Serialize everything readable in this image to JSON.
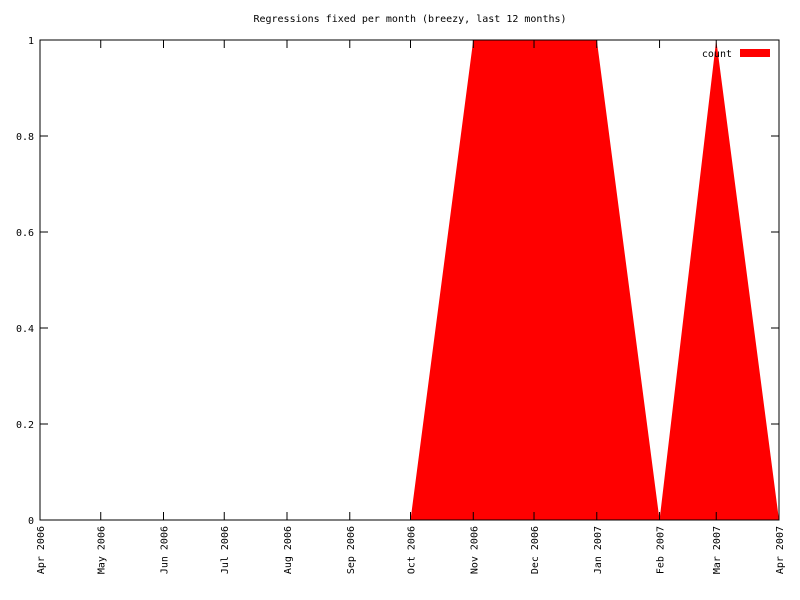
{
  "chart_data": {
    "type": "area",
    "title": "Regressions fixed per month (breezy, last 12 months)",
    "x": [
      "Apr 2006",
      "May 2006",
      "Jun 2006",
      "Jul 2006",
      "Aug 2006",
      "Sep 2006",
      "Oct 2006",
      "Nov 2006",
      "Dec 2006",
      "Jan 2007",
      "Feb 2007",
      "Mar 2007",
      "Apr 2007"
    ],
    "series": [
      {
        "name": "count",
        "color": "#ff0000",
        "values": [
          0,
          0,
          0,
          0,
          0,
          0,
          0,
          1,
          1,
          1,
          0,
          1,
          0
        ]
      }
    ],
    "xlim": [
      "Apr 2006",
      "Apr 2007"
    ],
    "xticks": [
      "Apr 2006",
      "May 2006",
      "Jun 2006",
      "Jul 2006",
      "Aug 2006",
      "Sep 2006",
      "Oct 2006",
      "Nov 2006",
      "Dec 2006",
      "Jan 2007",
      "Feb 2007",
      "Mar 2007",
      "Apr 2007"
    ],
    "ylim": [
      0,
      1
    ],
    "yticks": [
      0,
      0.2,
      0.4,
      0.6,
      0.8,
      1
    ],
    "legend": "top right"
  }
}
